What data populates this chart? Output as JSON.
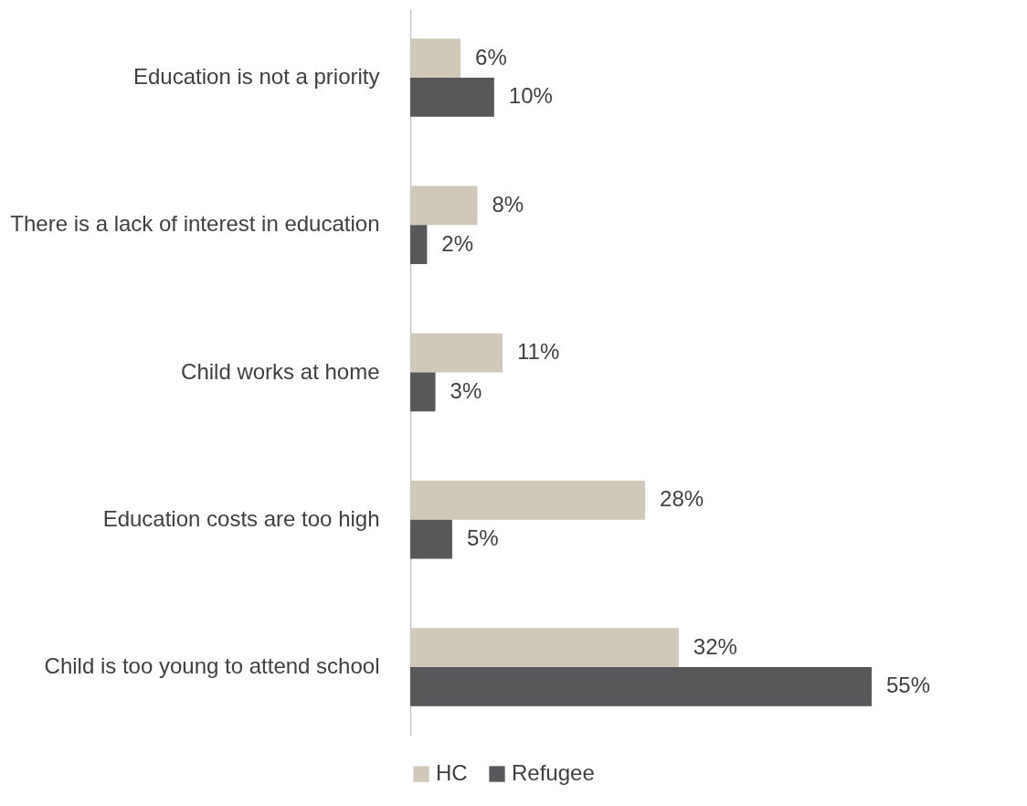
{
  "chart_data": {
    "type": "bar",
    "orientation": "horizontal",
    "categories": [
      "Education is not a priority",
      "There is a lack of interest in education",
      "Child works at home",
      "Education costs are too high",
      "Child is too young to attend school"
    ],
    "series": [
      {
        "name": "HC",
        "color": "#d0c9b9",
        "values": [
          6,
          8,
          11,
          28,
          32
        ],
        "value_labels": [
          "6%",
          "8%",
          "11%",
          "28%",
          "32%"
        ]
      },
      {
        "name": "Refugee",
        "color": "#58585a",
        "values": [
          10,
          2,
          3,
          5,
          55
        ],
        "value_labels": [
          "10%",
          "2%",
          "3%",
          "5%",
          "55%"
        ]
      }
    ],
    "legend": "bottom"
  }
}
